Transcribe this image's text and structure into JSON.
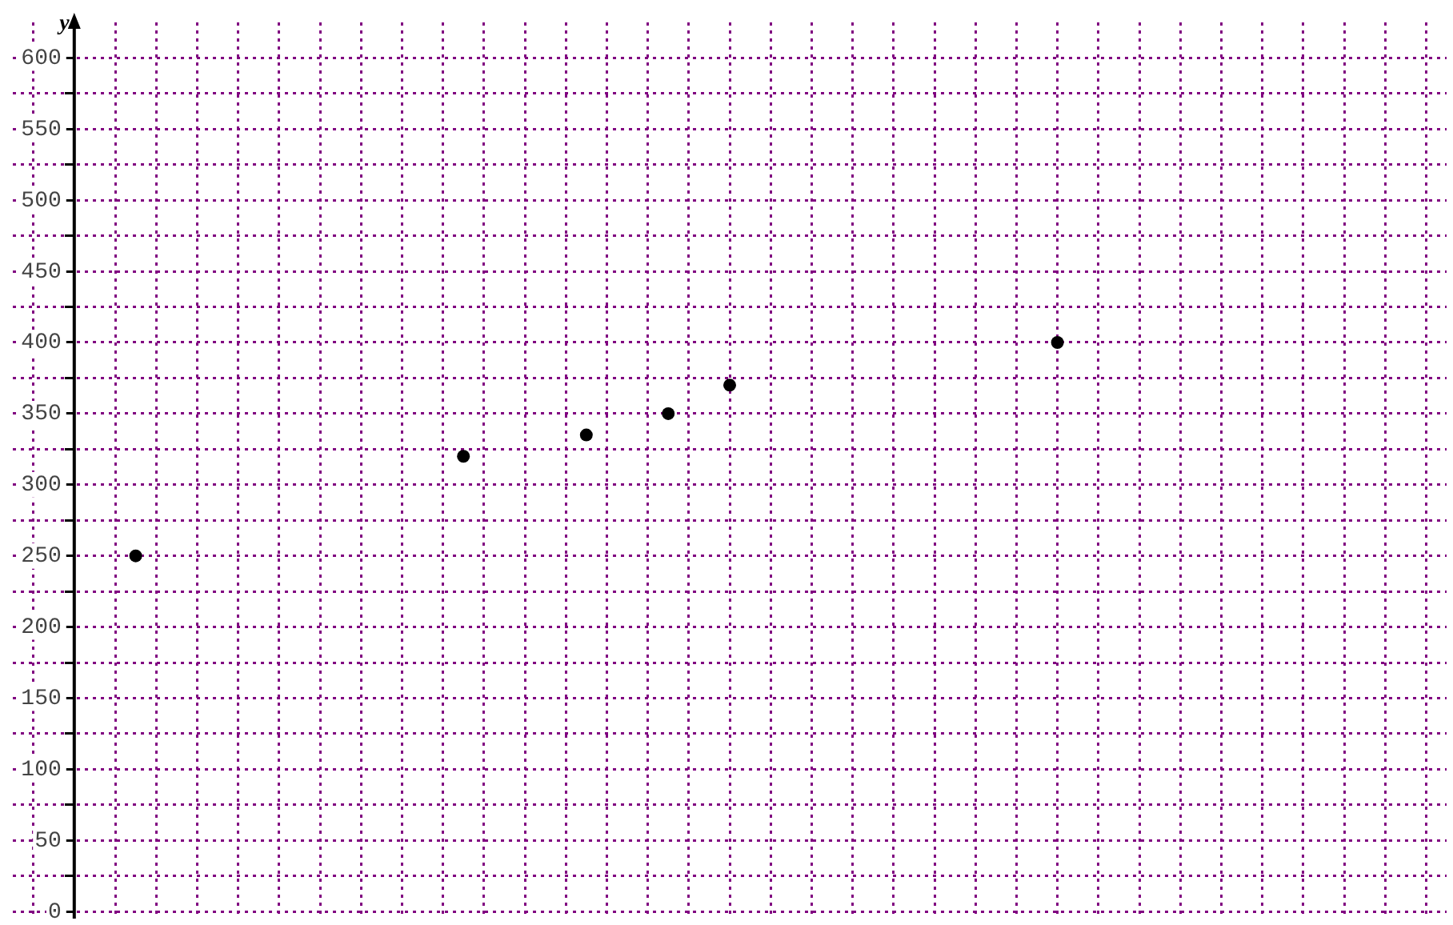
{
  "chart_data": {
    "type": "scatter",
    "ylabel": "y",
    "categories": [
      null,
      null,
      null,
      null,
      null,
      null,
      null,
      null,
      null,
      null,
      null,
      null,
      null,
      null,
      null,
      null,
      null,
      null,
      null,
      null,
      null,
      null,
      null,
      null,
      null,
      null,
      null,
      null,
      null,
      null,
      null,
      null,
      null,
      null,
      null,
      null,
      null,
      null,
      null,
      null,
      null,
      null,
      null,
      null,
      null,
      null,
      null,
      null,
      null,
      null,
      null,
      null,
      null,
      null,
      null,
      null,
      null,
      null,
      null,
      null,
      null,
      null,
      null,
      null,
      null,
      null,
      null,
      null,
      null,
      null,
      null
    ],
    "values": [
      null,
      null,
      null,
      null,
      null,
      null,
      250,
      null,
      null,
      null,
      null,
      null,
      null,
      null,
      null,
      null,
      null,
      null,
      null,
      null,
      null,
      null,
      320,
      null,
      null,
      null,
      null,
      null,
      335,
      null,
      null,
      null,
      350,
      null,
      null,
      370,
      null,
      null,
      null,
      null,
      null,
      null,
      null,
      null,
      null,
      null,
      null,
      null,
      null,
      null,
      null,
      400,
      null,
      null,
      null,
      null,
      null,
      null,
      null,
      null,
      null,
      null,
      null,
      null,
      null,
      null,
      null,
      null,
      null,
      null,
      null
    ],
    "color": "#000000",
    "marker": "circle",
    "grid": true,
    "tick_labels": "y",
    "ylim": [
      -5,
      625
    ],
    "yticks": [
      0,
      {
        "value": 25,
        "label": null
      },
      50,
      {
        "value": 75,
        "label": null
      },
      100,
      {
        "value": 125,
        "label": null
      },
      150,
      {
        "value": 175,
        "label": null
      },
      200,
      {
        "value": 225,
        "label": null
      },
      250,
      {
        "value": 275,
        "label": null
      },
      300,
      {
        "value": 325,
        "label": null
      },
      350,
      {
        "value": 375,
        "label": null
      },
      400,
      {
        "value": 425,
        "label": null
      },
      450,
      {
        "value": 475,
        "label": null
      },
      500,
      {
        "value": 525,
        "label": null
      },
      550,
      {
        "value": 575,
        "label": null
      },
      600
    ]
  }
}
